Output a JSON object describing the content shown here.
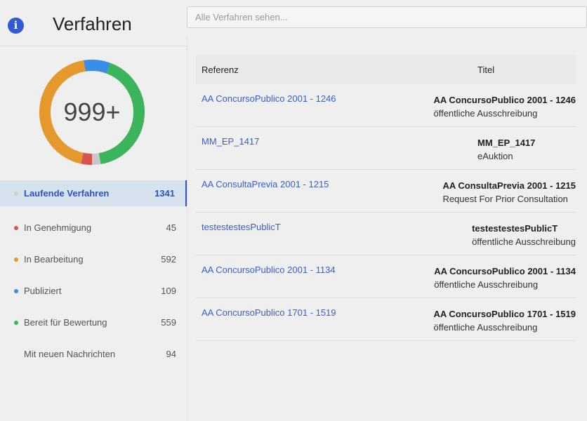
{
  "header": {
    "title": "Verfahren",
    "info_icon": "info-icon"
  },
  "search": {
    "placeholder": "Alle Verfahren sehen..."
  },
  "summary": {
    "center_label": "999+",
    "ring_color": "#c8c8c8",
    "segments": [
      {
        "status": "In Genehmigung",
        "value": 45,
        "color": "#d9534f"
      },
      {
        "status": "In Bearbeitung",
        "value": 592,
        "color": "#e5982b"
      },
      {
        "status": "Publiziert",
        "value": 109,
        "color": "#3b8ee8"
      },
      {
        "status": "Bereit für Bewertung",
        "value": 559,
        "color": "#3cb45c"
      }
    ]
  },
  "statuses": [
    {
      "label": "Laufende Verfahren",
      "count": "1341",
      "color": "#cfcfcf"
    },
    {
      "label": "In Genehmigung",
      "count": "45",
      "color": "#d9534f"
    },
    {
      "label": "In Bearbeitung",
      "count": "592",
      "color": "#e5982b"
    },
    {
      "label": "Publiziert",
      "count": "109",
      "color": "#3b8ee8"
    },
    {
      "label": "Bereit für Bewertung",
      "count": "559",
      "color": "#3cb45c"
    },
    {
      "label": "Mit neuen Nachrichten",
      "count": "94",
      "color": ""
    }
  ],
  "table": {
    "columns": {
      "reference": "Referenz",
      "title": "Titel"
    },
    "rows": [
      {
        "reference": "AA ConcursoPublico 2001 - 1246",
        "title": "AA ConcursoPublico 2001 - 1246",
        "type": "öffentliche Ausschreibung"
      },
      {
        "reference": "MM_EP_1417",
        "title": "MM_EP_1417",
        "type": "eAuktion"
      },
      {
        "reference": "AA ConsultaPrevia 2001 - 1215",
        "title": "AA ConsultaPrevia 2001 - 1215",
        "type": "Request For Prior Consultation"
      },
      {
        "reference": "testestestesPublicT",
        "title": "testestestesPublicT",
        "type": "öffentliche Ausschreibung"
      },
      {
        "reference": "AA ConcursoPublico 2001 - 1134",
        "title": "AA ConcursoPublico 2001 - 1134",
        "type": "öffentliche Ausschreibung"
      },
      {
        "reference": "AA ConcursoPublico 1701 - 1519",
        "title": "AA ConcursoPublico 1701 - 1519",
        "type": "öffentliche Ausschreibung"
      }
    ]
  }
}
